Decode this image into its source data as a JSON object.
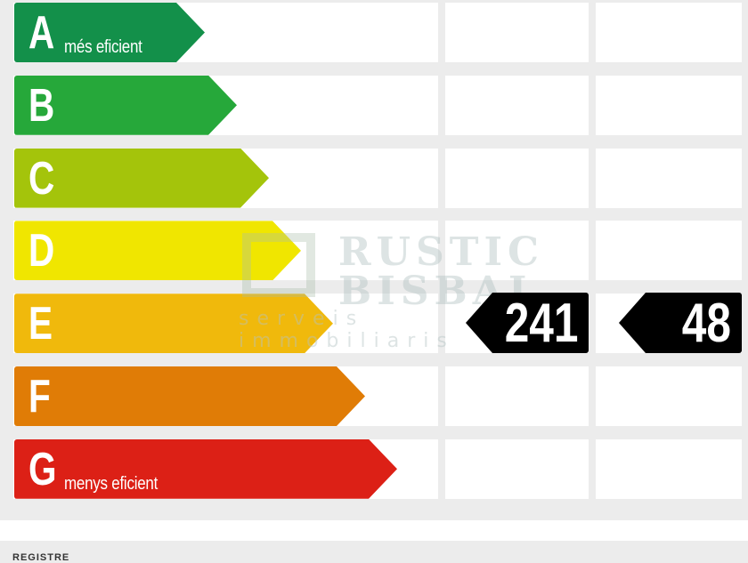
{
  "ratings": [
    {
      "letter": "A",
      "label": "més eficient",
      "color": "#13904a"
    },
    {
      "letter": "B",
      "label": "",
      "color": "#26a83a"
    },
    {
      "letter": "C",
      "label": "",
      "color": "#a4c40b"
    },
    {
      "letter": "D",
      "label": "",
      "color": "#f0e600"
    },
    {
      "letter": "E",
      "label": "",
      "color": "#f0b90c"
    },
    {
      "letter": "F",
      "label": "",
      "color": "#e07c06"
    },
    {
      "letter": "G",
      "label": "menys eficient",
      "color": "#dc2016"
    }
  ],
  "current_rating": "E",
  "consumption_value": "241",
  "emissions_value": "48",
  "watermark": {
    "line1": "RUSTIC",
    "line2": "BISBAL",
    "line3": "serveis immobiliaris"
  },
  "footer_label": "REGISTRE"
}
